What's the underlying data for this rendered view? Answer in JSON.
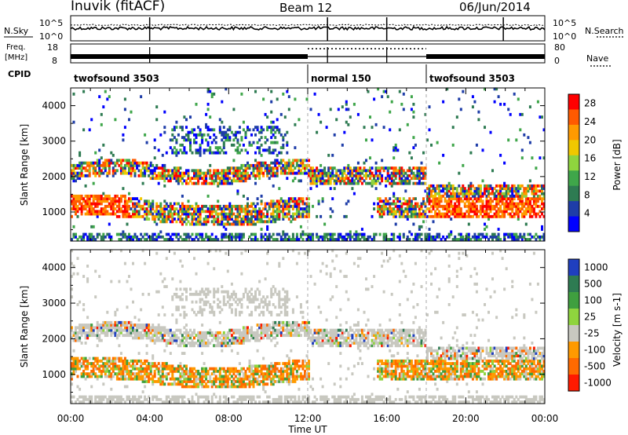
{
  "header": {
    "station": "Inuvik (fitACF)",
    "beam": "Beam 12",
    "date": "06/Jun/2014"
  },
  "top_panels": {
    "nsky_label": "N.Sky",
    "nsearch_label": "N.Search",
    "freq_label_line1": "Freq.",
    "freq_label_line2": "[MHz]",
    "nave_label": "Nave",
    "cpid_label": "CPID",
    "nsky_ticks": [
      "10^5",
      "10^0"
    ],
    "nsearch_ticks": [
      "10^5",
      "10^0"
    ],
    "freq_ticks": [
      "18",
      "8"
    ],
    "nave_ticks": [
      "80",
      "0"
    ],
    "cpid_segments": [
      {
        "label": "twofsound 3503",
        "start_h": 0,
        "end_h": 12
      },
      {
        "label": "normal 150",
        "start_h": 12,
        "end_h": 18
      },
      {
        "label": "twofsound 3503",
        "start_h": 18,
        "end_h": 24
      }
    ]
  },
  "colors": {
    "power_scale": [
      "#0000ff",
      "#1e3da8",
      "#2e7b52",
      "#3fa64a",
      "#8fd43e",
      "#f0c800",
      "#ff9a00",
      "#ff5a00",
      "#ff0000"
    ],
    "velocity_scale": [
      "#1f3fbf",
      "#2e7b52",
      "#3f9f3f",
      "#8fd43e",
      "#c8c8c0",
      "#ff9a00",
      "#ff6a00",
      "#ff1a00"
    ]
  },
  "chart_data": [
    {
      "type": "heatmap",
      "title": "",
      "xlabel": "Time UT",
      "ylabel": "Slant Range [km]",
      "x_ticks": [
        "00:00",
        "04:00",
        "08:00",
        "12:00",
        "16:00",
        "20:00",
        "00:00"
      ],
      "xlim_hours": [
        0,
        24
      ],
      "y_ticks": [
        1000,
        2000,
        3000,
        4000
      ],
      "ylim": [
        180,
        4500
      ],
      "colorbar": {
        "label": "Power [dB]",
        "ticks": [
          4,
          8,
          12,
          16,
          20,
          24,
          28
        ],
        "range": [
          0,
          30
        ]
      },
      "dashed_time_markers_h": [
        12,
        18
      ]
    },
    {
      "type": "heatmap",
      "title": "",
      "xlabel": "Time UT",
      "ylabel": "Slant Range [km]",
      "x_ticks": [
        "00:00",
        "04:00",
        "08:00",
        "12:00",
        "16:00",
        "20:00",
        "00:00"
      ],
      "xlim_hours": [
        0,
        24
      ],
      "y_ticks": [
        1000,
        2000,
        3000,
        4000
      ],
      "ylim": [
        180,
        4500
      ],
      "colorbar": {
        "label": "Velocity [m s-1]",
        "ticks": [
          "1000",
          "500",
          "100",
          "25",
          "-25",
          "-100",
          "-500",
          "-1000"
        ]
      },
      "dashed_time_markers_h": [
        12,
        18
      ]
    }
  ]
}
